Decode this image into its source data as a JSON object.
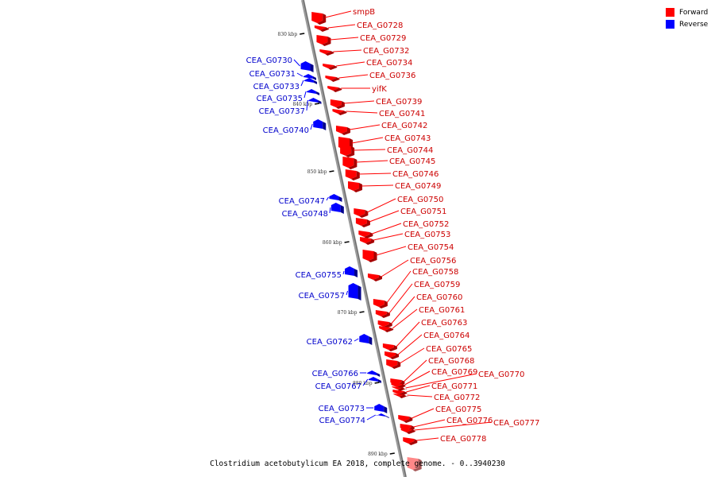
{
  "caption": "Clostridium acetobutylicum EA 2018, complete genome. - 0..3940230",
  "legend": [
    {
      "label": "Forward",
      "color": "#ff0000"
    },
    {
      "label": "Reverse",
      "color": "#0000ff"
    }
  ],
  "ticks": [
    "830 kbp",
    "840 kbp",
    "850 kbp",
    "860 kbp",
    "870 kbp",
    "880 kbp",
    "890 kbp"
  ],
  "forward_labels": [
    "smpB",
    "CEA_G0728",
    "CEA_G0729",
    "CEA_G0732",
    "CEA_G0734",
    "CEA_G0736",
    "yifK",
    "CEA_G0739",
    "CEA_G0741",
    "CEA_G0742",
    "CEA_G0743",
    "CEA_G0744",
    "CEA_G0745",
    "CEA_G0746",
    "CEA_G0749",
    "CEA_G0750",
    "CEA_G0751",
    "CEA_G0752",
    "CEA_G0753",
    "CEA_G0754",
    "CEA_G0756",
    "CEA_G0758",
    "CEA_G0759",
    "CEA_G0760",
    "CEA_G0761",
    "CEA_G0763",
    "CEA_G0764",
    "CEA_G0765",
    "CEA_G0768",
    "CEA_G0769",
    "CEA_G0770",
    "CEA_G0771",
    "CEA_G0772",
    "CEA_G0775",
    "CEA_G0776",
    "CEA_G0777",
    "CEA_G0778"
  ],
  "reverse_labels": [
    "CEA_G0730",
    "CEA_G0731",
    "CEA_G0733",
    "CEA_G0735",
    "CEA_G0737",
    "CEA_G0740",
    "CEA_G0747",
    "CEA_G0748",
    "CEA_G0755",
    "CEA_G0757",
    "CEA_G0762",
    "CEA_G0766",
    "CEA_G0767",
    "CEA_G0773",
    "CEA_G0774"
  ]
}
